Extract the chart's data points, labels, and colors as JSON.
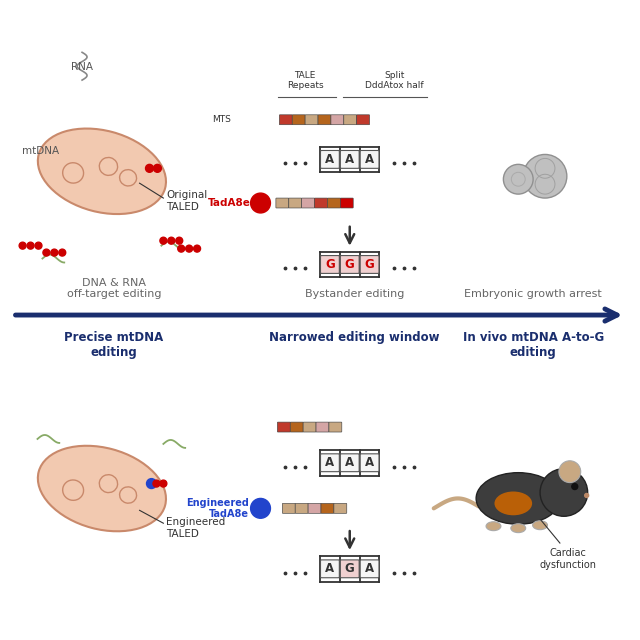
{
  "bg_color": "#ffffff",
  "arrow_color": "#1a2e6e",
  "top_labels_above_arrow": [
    "DNA & RNA\noff-target editing",
    "Bystander editing",
    "Embryonic growth arrest"
  ],
  "bottom_labels_below_arrow": [
    "Precise mtDNA\nediting",
    "Narrowed editing window",
    "In vivo mtDNA A-to-G\nediting"
  ],
  "mito_color_fill": "#f2c9b0",
  "mito_color_stroke": "#c9896b",
  "red_color": "#cc0000",
  "blue_color": "#2244cc",
  "tale_colors_top": [
    "#c0392b",
    "#b5651d",
    "#c8a882",
    "#b5651d",
    "#d4a5a5",
    "#c8a882",
    "#c0392b"
  ],
  "tale_colors_bot": [
    "#c0392b",
    "#b5651d",
    "#c8a882",
    "#d4a5a5",
    "#c8a882"
  ],
  "tale_box_colors_top": [
    "#c8a882",
    "#c8a882",
    "#d4a5a5",
    "#c0392b",
    "#b5651d",
    "#cc0000"
  ],
  "tale_box_colors_eng": [
    "#c8a882",
    "#c8a882",
    "#d4a5a5",
    "#b5651d",
    "#c8a882"
  ]
}
